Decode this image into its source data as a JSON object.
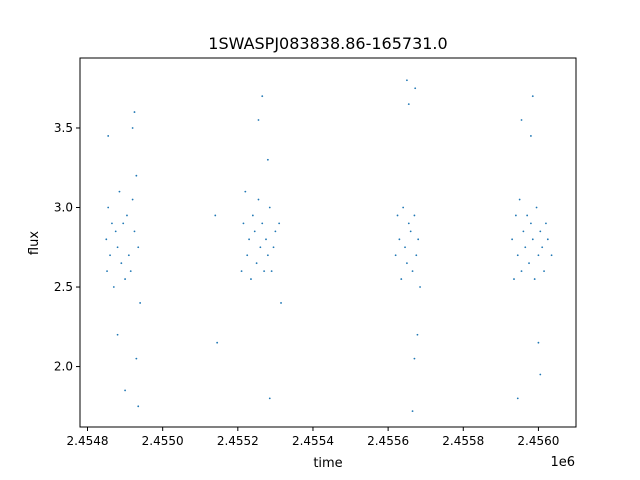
{
  "chart_data": {
    "type": "scatter",
    "title": "1SWASPJ083838.86-165731.0",
    "xlabel": "time",
    "ylabel": "flux",
    "x_offset_label": "1e6",
    "xlim": [
      2.45478,
      2.4561
    ],
    "ylim": [
      1.62,
      3.94
    ],
    "x_ticks": [
      2.4548,
      2.455,
      2.4552,
      2.4554,
      2.4556,
      2.4558,
      2.456
    ],
    "x_tick_labels": [
      "2.4548",
      "2.4550",
      "2.4552",
      "2.4554",
      "2.4556",
      "2.4558",
      "2.4560"
    ],
    "y_ticks": [
      2.0,
      2.5,
      3.0,
      3.5
    ],
    "y_tick_labels": [
      "2.0",
      "2.5",
      "3.0",
      "3.5"
    ],
    "grid": false,
    "point_color": "#1f77b4",
    "series": [
      {
        "x": [
          2.45485,
          2.454852,
          2.454855,
          2.45486,
          2.454865,
          2.45487,
          2.454875,
          2.45488,
          2.454885,
          2.45489,
          2.454895,
          2.4549,
          2.454905,
          2.45491,
          2.454915,
          2.45492,
          2.454925,
          2.45493,
          2.454935,
          2.45494,
          2.454855,
          2.45488,
          2.4549,
          2.45492,
          2.454925,
          2.454935,
          2.45493,
          2.45514,
          2.455145,
          2.45521,
          2.455215,
          2.45522,
          2.455225,
          2.45523,
          2.455235,
          2.45524,
          2.455245,
          2.45525,
          2.455255,
          2.45526,
          2.455265,
          2.45527,
          2.455275,
          2.45528,
          2.455285,
          2.45529,
          2.455295,
          2.4553,
          2.455255,
          2.455265,
          2.45528,
          2.455285,
          2.45531,
          2.455315,
          2.45562,
          2.455625,
          2.45563,
          2.455635,
          2.45564,
          2.455645,
          2.45565,
          2.455655,
          2.45566,
          2.455665,
          2.45567,
          2.455675,
          2.45568,
          2.455685,
          2.45565,
          2.455655,
          2.455665,
          2.45567,
          2.455672,
          2.455678,
          2.45593,
          2.455935,
          2.45594,
          2.455945,
          2.45595,
          2.455955,
          2.45596,
          2.455965,
          2.45597,
          2.455975,
          2.45598,
          2.455985,
          2.45599,
          2.455995,
          2.456,
          2.456005,
          2.45601,
          2.456015,
          2.45602,
          2.456025,
          2.456035,
          2.455955,
          2.45598,
          2.456,
          2.456005,
          2.455945,
          2.455985
        ],
        "y": [
          2.8,
          2.6,
          3.0,
          2.7,
          2.9,
          2.5,
          2.85,
          2.75,
          3.1,
          2.65,
          2.9,
          2.55,
          2.95,
          2.7,
          2.6,
          3.05,
          2.85,
          3.2,
          2.75,
          2.4,
          3.45,
          2.2,
          1.85,
          3.5,
          3.6,
          1.75,
          2.05,
          2.95,
          2.15,
          2.6,
          2.9,
          3.1,
          2.7,
          2.8,
          2.55,
          2.95,
          2.85,
          2.65,
          3.05,
          2.75,
          2.9,
          2.6,
          2.8,
          2.7,
          3.0,
          2.6,
          2.75,
          2.85,
          3.55,
          3.7,
          3.3,
          1.8,
          2.9,
          2.4,
          2.7,
          2.95,
          2.8,
          2.55,
          3.0,
          2.75,
          2.65,
          2.9,
          2.85,
          2.6,
          2.95,
          2.7,
          2.8,
          2.5,
          3.8,
          3.65,
          1.72,
          2.05,
          3.75,
          2.2,
          2.8,
          2.55,
          2.95,
          2.7,
          3.05,
          2.6,
          2.85,
          2.75,
          2.95,
          2.65,
          2.9,
          2.8,
          2.55,
          3.0,
          2.7,
          2.85,
          2.75,
          2.6,
          2.9,
          2.8,
          2.7,
          3.55,
          3.45,
          2.15,
          1.95,
          1.8,
          3.7
        ]
      }
    ]
  }
}
